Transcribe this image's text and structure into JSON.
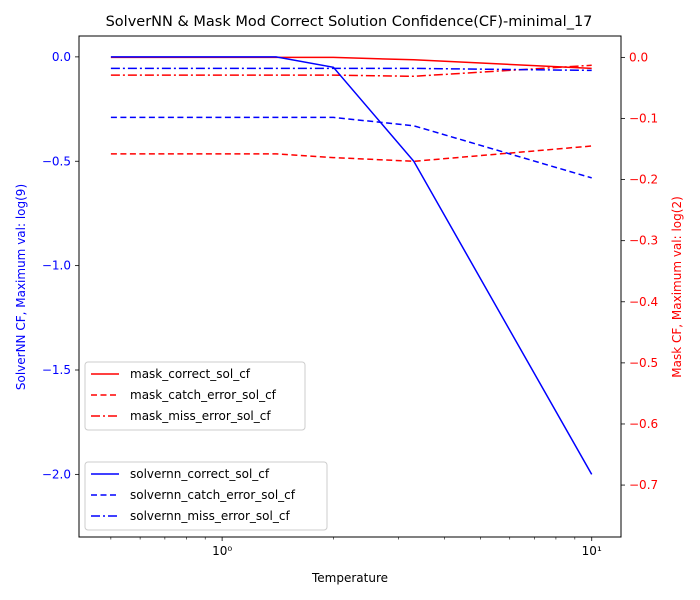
{
  "chart_data": {
    "type": "line",
    "title": "SolverNN & Mask Mod Correct Solution Confidence(CF)-minimal_17",
    "xlabel": "Temperature",
    "xscale": "log",
    "xlim": [
      0.41,
      12.0
    ],
    "x_ticks": [
      {
        "value": 1,
        "label": "10⁰"
      },
      {
        "value": 10,
        "label": "10¹"
      }
    ],
    "x": [
      0.5,
      1.0,
      1.4,
      2.0,
      3.3,
      10.0
    ],
    "left_axis": {
      "label": "SolverNN CF, Maximum val: log(9)",
      "color": "#0000ff",
      "ylim": [
        -2.3,
        0.1
      ],
      "ticks": [
        0.0,
        -0.5,
        -1.0,
        -1.5,
        -2.0
      ],
      "tick_labels": [
        "0.0",
        "−0.5",
        "−1.0",
        "−1.5",
        "−2.0"
      ]
    },
    "right_axis": {
      "label": "Mask CF, Maximum val: log(2)",
      "color": "#ff0000",
      "ylim": [
        -0.785,
        0.035
      ],
      "ticks": [
        0.0,
        -0.1,
        -0.2,
        -0.3,
        -0.4,
        -0.5,
        -0.6,
        -0.7
      ],
      "tick_labels": [
        "0.0",
        "−0.1",
        "−0.2",
        "−0.3",
        "−0.4",
        "−0.5",
        "−0.6",
        "−0.7"
      ]
    },
    "series": [
      {
        "name": "mask_correct_sol_cf",
        "axis": "right",
        "color": "#ff0000",
        "style": "solid",
        "values": [
          0.0,
          0.0,
          0.0,
          0.0,
          -0.004,
          -0.018
        ]
      },
      {
        "name": "mask_catch_error_sol_cf",
        "axis": "right",
        "color": "#ff0000",
        "style": "dashed",
        "values": [
          -0.158,
          -0.158,
          -0.158,
          -0.164,
          -0.17,
          -0.145
        ]
      },
      {
        "name": "mask_miss_error_sol_cf",
        "axis": "right",
        "color": "#ff0000",
        "style": "dashdot",
        "values": [
          -0.029,
          -0.029,
          -0.029,
          -0.029,
          -0.031,
          -0.013
        ]
      },
      {
        "name": "solvernn_correct_sol_cf",
        "axis": "left",
        "color": "#0000ff",
        "style": "solid",
        "values": [
          0.0,
          0.0,
          0.0,
          -0.05,
          -0.5,
          -2.0
        ]
      },
      {
        "name": "solvernn_catch_error_sol_cf",
        "axis": "left",
        "color": "#0000ff",
        "style": "dashed",
        "values": [
          -0.29,
          -0.29,
          -0.29,
          -0.29,
          -0.33,
          -0.58
        ]
      },
      {
        "name": "solvernn_miss_error_sol_cf",
        "axis": "left",
        "color": "#0000ff",
        "style": "dashdot",
        "values": [
          -0.055,
          -0.055,
          -0.055,
          -0.055,
          -0.055,
          -0.065
        ]
      }
    ],
    "legends": [
      {
        "position": "lower-left-upper",
        "entries": [
          "mask_correct_sol_cf",
          "mask_catch_error_sol_cf",
          "mask_miss_error_sol_cf"
        ]
      },
      {
        "position": "lower-left",
        "entries": [
          "solvernn_correct_sol_cf",
          "solvernn_catch_error_sol_cf",
          "solvernn_miss_error_sol_cf"
        ]
      }
    ],
    "grid": false
  }
}
